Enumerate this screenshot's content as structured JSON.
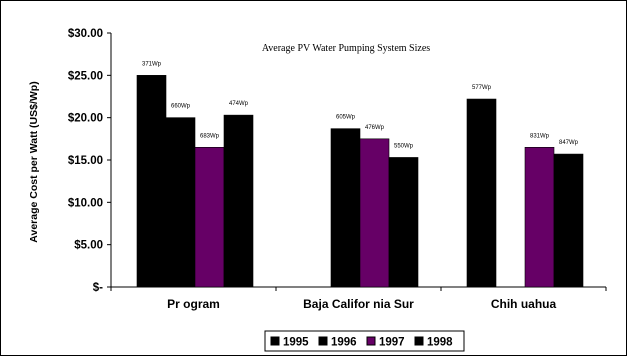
{
  "chart_data": {
    "type": "bar",
    "title": "Average PV Water Pumping System Sizes",
    "ylabel": "Average Cost per Watt (US$/Wp)",
    "xlabel": "",
    "ylim": [
      0,
      30
    ],
    "yticks": [
      0,
      5,
      10,
      15,
      20,
      25,
      30
    ],
    "ytick_labels": [
      "$-",
      "$5.00",
      "$10.00",
      "$15.00",
      "$20.00",
      "$25.00",
      "$30.00"
    ],
    "categories": [
      "Pr ogram",
      "Baja Califor nia Sur",
      "Chih uahua"
    ],
    "series": [
      {
        "name": "1995",
        "color": "#000000",
        "values": [
          25.0,
          null,
          22.2
        ],
        "labels": [
          "371Wp",
          "",
          "577Wp"
        ]
      },
      {
        "name": "1996",
        "color": "#000000",
        "values": [
          20.0,
          18.7,
          null
        ],
        "labels": [
          "660Wp",
          "605Wp",
          ""
        ]
      },
      {
        "name": "1997",
        "color": "#660066",
        "values": [
          16.5,
          17.5,
          16.5
        ],
        "labels": [
          "683Wp",
          "476Wp",
          "831Wp"
        ]
      },
      {
        "name": "1998",
        "color": "#000000",
        "values": [
          20.3,
          15.3,
          15.7
        ],
        "labels": [
          "474Wp",
          "550Wp",
          "847Wp"
        ]
      }
    ],
    "grid": false,
    "legend_position": "bottom"
  }
}
